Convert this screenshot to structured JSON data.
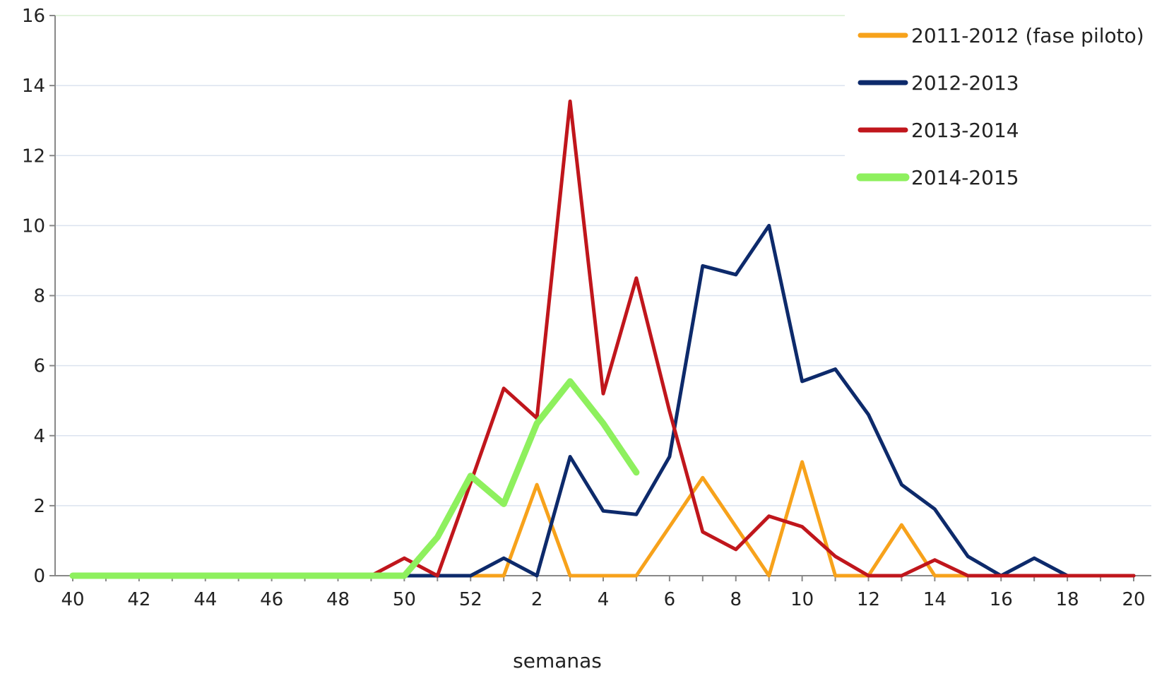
{
  "chart_data": {
    "type": "line",
    "title": "",
    "xlabel": "semanas",
    "ylabel": "",
    "ylim": [
      0,
      16
    ],
    "yticks": [
      "0",
      "2",
      "4",
      "6",
      "8",
      "10",
      "12",
      "14",
      "16"
    ],
    "x_categories": [
      "40",
      "41",
      "42",
      "43",
      "44",
      "45",
      "46",
      "47",
      "48",
      "49",
      "50",
      "51",
      "52",
      "1",
      "2",
      "3",
      "4",
      "5",
      "6",
      "7",
      "8",
      "9",
      "10",
      "11",
      "12",
      "13",
      "14",
      "15",
      "16",
      "17",
      "18",
      "19",
      "20"
    ],
    "xticks": [
      "40",
      "42",
      "44",
      "46",
      "48",
      "50",
      "52",
      "2",
      "4",
      "6",
      "8",
      "10",
      "12",
      "14",
      "16",
      "18",
      "20"
    ],
    "grid": true,
    "legend_position": "top-right",
    "series": [
      {
        "name": "2011-2012 (fase piloto)",
        "color": "#f7a21b",
        "values": [
          null,
          null,
          null,
          null,
          null,
          null,
          null,
          null,
          null,
          null,
          null,
          null,
          0,
          0,
          2.6,
          0,
          0,
          0,
          1.4,
          2.8,
          1.4,
          0,
          3.25,
          0,
          0,
          1.45,
          0,
          0,
          0,
          0,
          0,
          0,
          0
        ]
      },
      {
        "name": "2012-2013",
        "color": "#0d2a6b",
        "values": [
          null,
          null,
          null,
          null,
          null,
          null,
          null,
          null,
          null,
          null,
          0,
          0,
          0,
          0.5,
          0,
          3.4,
          1.85,
          1.75,
          3.4,
          8.85,
          8.6,
          10,
          5.55,
          5.9,
          4.6,
          2.6,
          1.9,
          0.55,
          0,
          0.5,
          0,
          0,
          0
        ]
      },
      {
        "name": "2013-2014",
        "color": "#c0161c",
        "values": [
          null,
          null,
          null,
          null,
          null,
          null,
          null,
          null,
          null,
          0,
          0.5,
          0,
          2.65,
          5.35,
          4.5,
          13.55,
          5.2,
          8.5,
          4.7,
          1.25,
          0.75,
          1.7,
          1.4,
          0.55,
          0,
          0,
          0.45,
          0,
          0,
          0,
          0,
          0,
          0
        ]
      },
      {
        "name": "2014-2015",
        "color": "#8ef05e",
        "values": [
          0,
          0,
          0,
          0,
          0,
          0,
          0,
          0,
          0,
          0,
          0,
          1.1,
          2.85,
          2.05,
          4.35,
          5.55,
          4.35,
          2.95,
          null,
          null,
          null,
          null,
          null,
          null,
          null,
          null,
          null,
          null,
          null,
          null,
          null,
          null,
          null
        ]
      }
    ]
  }
}
